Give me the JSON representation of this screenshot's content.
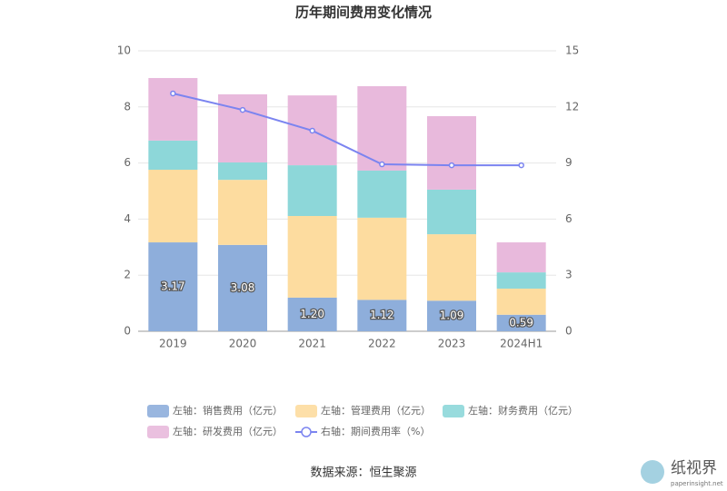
{
  "chart_data": {
    "type": "bar",
    "title": "历年期间费用变化情况",
    "categories": [
      "2019",
      "2020",
      "2021",
      "2022",
      "2023",
      "2024H1"
    ],
    "series": [
      {
        "name": "左轴：销售费用（亿元）",
        "color": "#8eaedb",
        "values": [
          3.17,
          3.08,
          1.2,
          1.12,
          1.09,
          0.59
        ],
        "value_labels": [
          "3.17",
          "3.08",
          "1.20",
          "1.12",
          "1.09",
          "0.59"
        ]
      },
      {
        "name": "左轴：管理费用（亿元）",
        "color": "#fddc9f",
        "values": [
          2.59,
          2.32,
          2.91,
          2.93,
          2.37,
          0.93
        ]
      },
      {
        "name": "左轴：财务费用（亿元）",
        "color": "#8dd7d9",
        "values": [
          1.04,
          0.62,
          1.81,
          1.68,
          1.59,
          0.58
        ]
      },
      {
        "name": "左轴：研发费用（亿元）",
        "color": "#e8b9dc",
        "values": [
          2.23,
          2.43,
          2.49,
          3.01,
          2.62,
          1.07
        ]
      },
      {
        "name": "右轴：期间费用率（%）",
        "color": "#7b84f0",
        "type": "line",
        "axis": "y2",
        "values": [
          12.72,
          11.84,
          10.73,
          8.93,
          8.88,
          8.88
        ]
      }
    ],
    "ylim": [
      0,
      10
    ],
    "yticks": [
      0,
      2,
      4,
      6,
      8,
      10
    ],
    "y2lim": [
      0,
      15
    ],
    "y2ticks": [
      0,
      3,
      6,
      9,
      12,
      15
    ],
    "grid": true,
    "stacked": true,
    "source": "数据来源：恒生聚源",
    "watermark": [
      "纸视界",
      "paperinsight.net"
    ]
  }
}
